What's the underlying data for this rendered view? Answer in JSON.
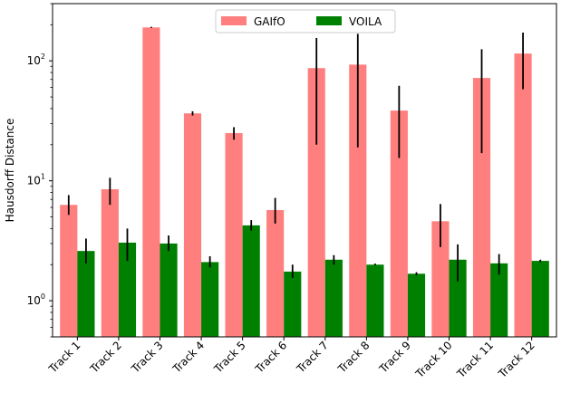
{
  "chart_data": {
    "type": "bar",
    "scale": "log",
    "title": "",
    "xlabel": "",
    "ylabel": "Hausdorff Distance",
    "ylim": [
      0.5,
      300
    ],
    "yticks": [
      {
        "value": 1,
        "base": "10",
        "exp": "0"
      },
      {
        "value": 10,
        "base": "10",
        "exp": "1"
      },
      {
        "value": 100,
        "base": "10",
        "exp": "2"
      }
    ],
    "categories": [
      "Track 1",
      "Track 2",
      "Track 3",
      "Track 4",
      "Track 5",
      "Track 6",
      "Track 7",
      "Track 8",
      "Track 9",
      "Track 10",
      "Track 11",
      "Track 12"
    ],
    "legend": {
      "position": "top-center",
      "columns": 2
    },
    "series": [
      {
        "name": "GAIfO",
        "color": "#ff7f7f",
        "values": [
          6.3,
          8.5,
          190,
          36.5,
          25,
          5.7,
          87,
          93,
          38.5,
          4.6,
          72,
          115
        ],
        "err_low": [
          5.2,
          6.3,
          188,
          35,
          22,
          4.4,
          20,
          19,
          15.5,
          2.8,
          17,
          58
        ],
        "err_high": [
          7.6,
          10.6,
          192,
          38,
          28,
          7.2,
          155,
          168,
          62,
          6.4,
          125,
          172
        ]
      },
      {
        "name": "VOILA",
        "color": "#008000",
        "values": [
          2.6,
          3.05,
          3.0,
          2.1,
          4.25,
          1.75,
          2.2,
          2.0,
          1.68,
          2.2,
          2.05,
          2.15
        ],
        "err_low": [
          2.05,
          2.15,
          2.6,
          1.9,
          3.85,
          1.55,
          2.0,
          1.98,
          1.63,
          1.45,
          1.65,
          2.1
        ],
        "err_high": [
          3.3,
          4.0,
          3.5,
          2.35,
          4.7,
          2.0,
          2.4,
          2.04,
          1.73,
          2.95,
          2.45,
          2.2
        ]
      }
    ]
  }
}
